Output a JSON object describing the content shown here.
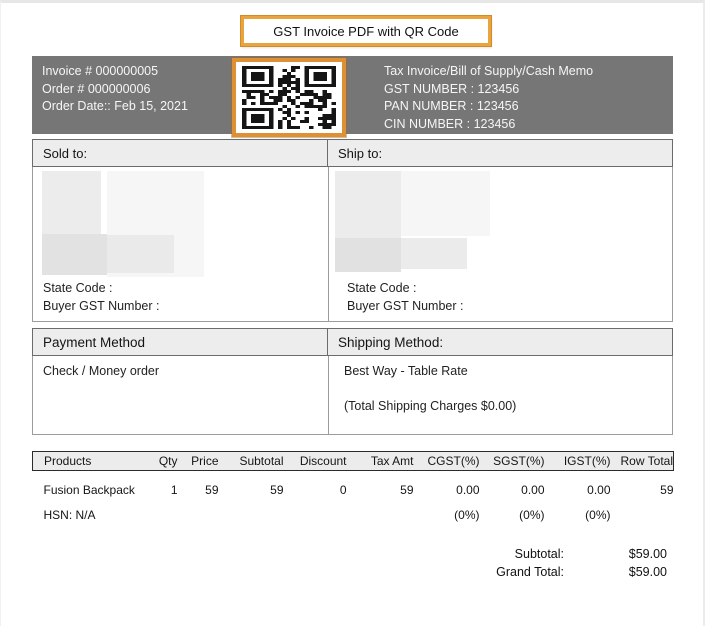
{
  "title": "GST Invoice PDF with QR Code",
  "header": {
    "invoice_no": "Invoice # 000000005",
    "order_no": "Order # 000000006",
    "order_date": "Order Date:: Feb 15, 2021",
    "doc_type": "Tax Invoice/Bill of Supply/Cash Memo",
    "gst_number": "GST NUMBER : 123456",
    "pan_number": "PAN NUMBER : 123456",
    "cin_number": "CIN NUMBER : 123456",
    "qr_icon": "qr-code-icon"
  },
  "addresses": {
    "sold_to_label": "Sold to:",
    "ship_to_label": "Ship to:",
    "sold_to": {
      "state_code_label": "State Code :",
      "buyer_gst_label": "Buyer GST Number :"
    },
    "ship_to": {
      "state_code_label": "State Code :",
      "buyer_gst_label": "Buyer GST Number :"
    }
  },
  "payment": {
    "header": "Payment Method",
    "method": "Check / Money order"
  },
  "shipping": {
    "header": "Shipping Method:",
    "method": "Best Way - Table Rate",
    "charges": "(Total Shipping Charges $0.00)"
  },
  "products_table": {
    "headers": [
      "Products",
      "Qty",
      "Price",
      "Subtotal",
      "Discount",
      "Tax Amt",
      "CGST(%)",
      "SGST(%)",
      "IGST(%)",
      "Row Total"
    ],
    "rows": [
      [
        "Fusion Backpack",
        "1",
        "59",
        "59",
        "0",
        "59",
        "0.00",
        "0.00",
        "0.00",
        "59"
      ],
      [
        "HSN: N/A",
        "",
        "",
        "",
        "",
        "",
        "(0%)",
        "(0%)",
        "(0%)",
        ""
      ]
    ]
  },
  "totals": {
    "subtotal_label": "Subtotal:",
    "subtotal_value": "$59.00",
    "grand_total_label": "Grand Total:",
    "grand_total_value": "$59.00"
  },
  "colors": {
    "accent_orange": "#dd9134",
    "title_border_orange": "#e9a43e",
    "header_bar_gray": "#767676",
    "section_header_bg": "#ededed"
  }
}
